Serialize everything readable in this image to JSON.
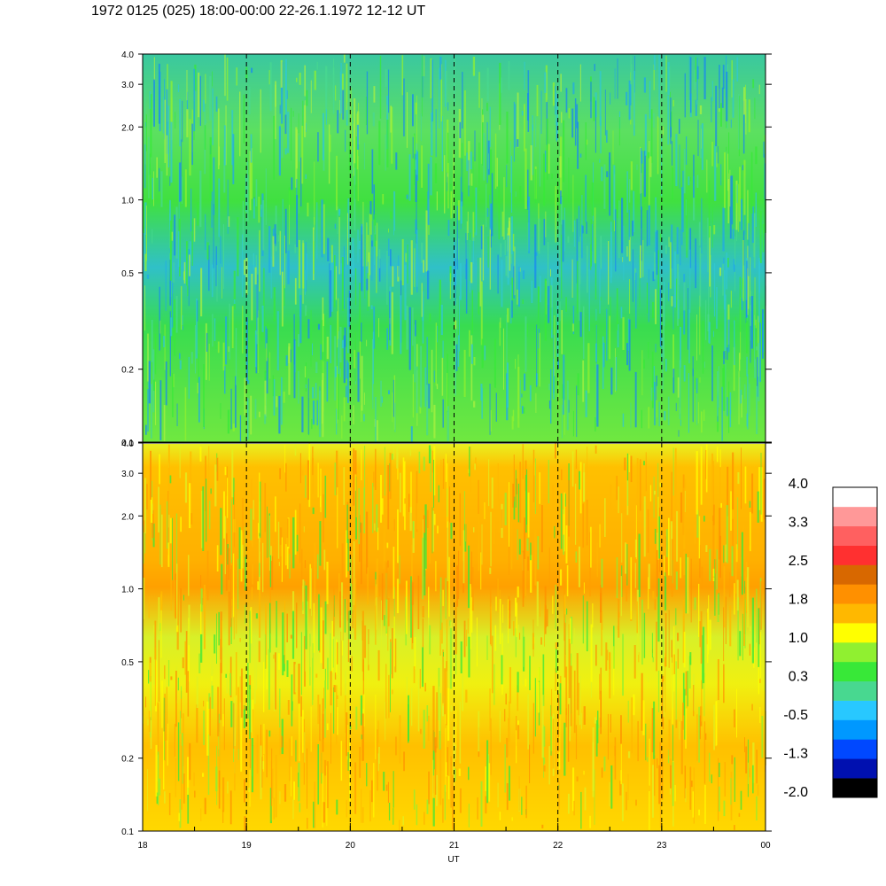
{
  "title": "1972 0125 (025) 18:00-00:00 22-26.1.1972  12-12 UT",
  "chart_data": {
    "type": "heatmap",
    "xlabel": "UT",
    "x_tick_labels": [
      "18",
      "19",
      "20",
      "21",
      "22",
      "23",
      "00"
    ],
    "x_range": [
      18,
      24
    ],
    "dashed_hour_lines": [
      19,
      20,
      21,
      22,
      23
    ],
    "y_scale": "log",
    "panels": [
      {
        "name": "upper",
        "y_range": [
          0.1,
          4.0
        ],
        "y_tick_values": [
          0.1,
          0.2,
          0.5,
          1.0,
          2.0,
          3.0,
          4.0
        ],
        "y_tick_labels": [
          "0.1",
          "0.2",
          "0.5",
          "1.0",
          "2.0",
          "3.0",
          "4.0"
        ],
        "dominant_level": 0.3
      },
      {
        "name": "lower",
        "y_range": [
          0.1,
          4.0
        ],
        "y_tick_values": [
          0.1,
          0.2,
          0.5,
          1.0,
          2.0,
          3.0,
          4.0
        ],
        "y_tick_labels": [
          "0.1",
          "0.2",
          "0.5",
          "1.0",
          "2.0",
          "3.0",
          "4.0"
        ],
        "dominant_level": 1.4
      }
    ],
    "colorbar": {
      "range": [
        -2.0,
        4.0
      ],
      "labels": [
        "4.0",
        "3.3",
        "2.5",
        "1.8",
        "1.0",
        "0.3",
        "-0.5",
        "-1.3",
        "-2.0"
      ],
      "colors": [
        "#000000",
        "#0010b0",
        "#0048ff",
        "#0098ff",
        "#28c8ff",
        "#48d890",
        "#38e838",
        "#90f030",
        "#ffff00",
        "#ffb800",
        "#ff9000",
        "#d86800",
        "#ff3030",
        "#ff6060",
        "#ff9898",
        "#ffffff"
      ]
    }
  }
}
